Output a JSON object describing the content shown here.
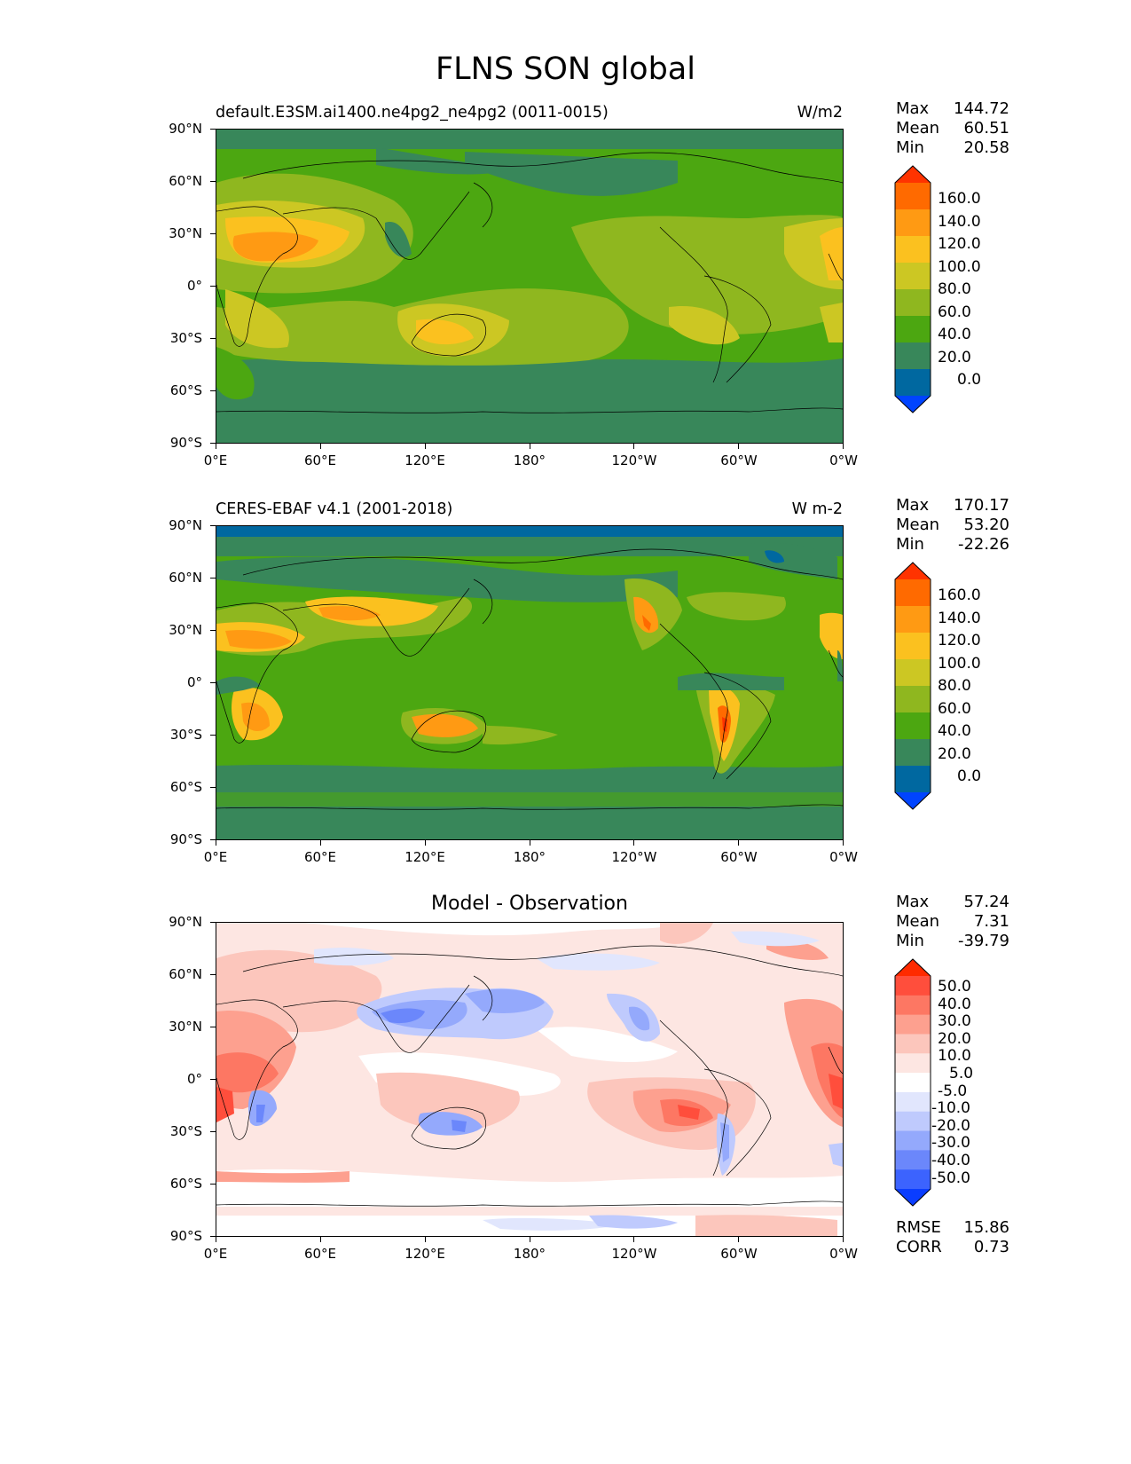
{
  "figure_title": "FLNS SON global",
  "units_label": "W/m2",
  "panels": [
    {
      "id": "model",
      "title": "default.E3SM.ai1400.ne4pg2_ne4pg2 (0011-0015)",
      "units": "W/m2",
      "stats": {
        "max_label": "Max",
        "max": "144.72",
        "mean_label": "Mean",
        "mean": "60.51",
        "min_label": "Min",
        "min": "20.58"
      }
    },
    {
      "id": "obs",
      "title": "CERES-EBAF v4.1 (2001-2018)",
      "units": "W m-2",
      "stats": {
        "max_label": "Max",
        "max": "170.17",
        "mean_label": "Mean",
        "mean": "53.20",
        "min_label": "Min",
        "min": "-22.26"
      }
    },
    {
      "id": "diff",
      "title": "Model - Observation",
      "units": "",
      "stats": {
        "max_label": "Max",
        "max": "57.24",
        "mean_label": "Mean",
        "mean": "7.31",
        "min_label": "Min",
        "min": "-39.79"
      },
      "extra": {
        "rmse_label": "RMSE",
        "rmse": "15.86",
        "corr_label": "CORR",
        "corr": "0.73"
      }
    }
  ],
  "y_ticks": [
    "90°N",
    "60°N",
    "30°N",
    "0°",
    "30°S",
    "60°S",
    "90°S"
  ],
  "x_ticks": [
    "0°E",
    "60°E",
    "120°E",
    "180°",
    "120°W",
    "60°W",
    "0°W"
  ],
  "colorbar_main": {
    "labels": [
      "160.0",
      "140.0",
      "120.0",
      "100.0",
      "80.0",
      "60.0",
      "40.0",
      "20.0",
      "0.0"
    ],
    "colors": [
      "#ff3300",
      "#ff6a00",
      "#ff9a13",
      "#fbc11f",
      "#ccc723",
      "#8fb71f",
      "#4ca711",
      "#38875a",
      "#0068a0",
      "#0044ff"
    ]
  },
  "colorbar_diff": {
    "labels": [
      "50.0",
      "40.0",
      "30.0",
      "20.0",
      "10.0",
      "5.0",
      "-5.0",
      "-10.0",
      "-20.0",
      "-30.0",
      "-40.0",
      "-50.0"
    ],
    "colors": [
      "#ff2a00",
      "#ff4e3c",
      "#fd7763",
      "#fda08f",
      "#fcc6bc",
      "#fde6e2",
      "#ffffff",
      "#e1e6fd",
      "#bfcafd",
      "#94a9fc",
      "#6b87fb",
      "#3c63fe",
      "#0a3dff"
    ]
  }
}
